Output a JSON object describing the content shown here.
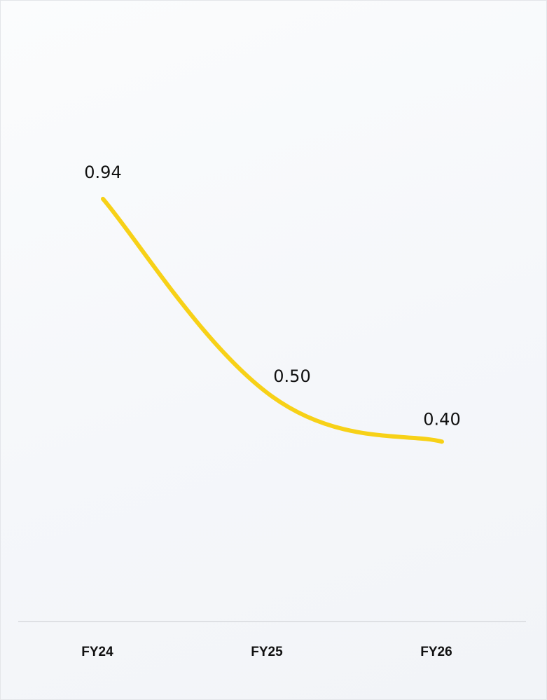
{
  "chart_data": {
    "type": "line",
    "categories": [
      "FY24",
      "FY25",
      "FY26"
    ],
    "series": [
      {
        "values": [
          0.94,
          0.5,
          0.4
        ]
      }
    ],
    "data_labels": [
      "0.94",
      "0.50",
      "0.40"
    ],
    "title": "",
    "xlabel": "",
    "ylabel": "",
    "ylim": [
      0,
      1.2
    ],
    "grid": false,
    "legend": "none",
    "line_color": "#f7d117",
    "axis_color": "#d7d9dd",
    "smooth": true
  }
}
